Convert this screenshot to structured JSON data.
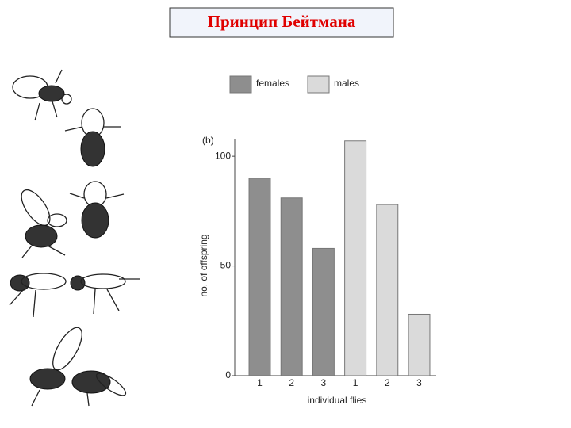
{
  "slide_title": "Принцип Бейтмана",
  "chart_data": {
    "type": "bar",
    "panel_label": "(b)",
    "x_label": "individual flies",
    "y_label": "no. of offspring",
    "categories": [
      "1",
      "2",
      "3",
      "1",
      "2",
      "3"
    ],
    "series": [
      {
        "name": "females",
        "color": "#8e8e8e",
        "values": [
          90,
          81,
          58,
          null,
          null,
          null
        ]
      },
      {
        "name": "males",
        "color": "#dadada",
        "values": [
          null,
          null,
          null,
          107,
          78,
          28
        ]
      }
    ],
    "ylim": [
      0,
      108
    ],
    "yticks": [
      0,
      50,
      100
    ],
    "grid": false
  }
}
